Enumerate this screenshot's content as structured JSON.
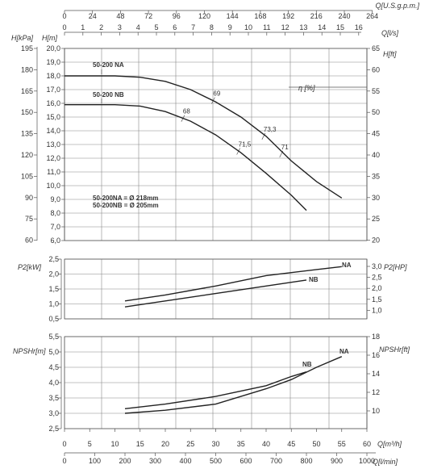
{
  "chart_data": [
    {
      "panel": "head",
      "type": "line",
      "top_axes": [
        {
          "title": "Q[U.S.g.p.m.]",
          "ticks": [
            "0",
            "24",
            "48",
            "72",
            "96",
            "120",
            "144",
            "168",
            "192",
            "216",
            "240",
            "264"
          ]
        },
        {
          "title": "Q[l/s]",
          "ticks": [
            "0",
            "1",
            "2",
            "3",
            "4",
            "5",
            "6",
            "7",
            "8",
            "9",
            "10",
            "11",
            "12",
            "13",
            "14",
            "15",
            "16"
          ]
        }
      ],
      "y_axis_m": {
        "title": "H[m]",
        "range": [
          6.0,
          20.0
        ],
        "ticks": [
          "20,0",
          "19,0",
          "18,0",
          "17,0",
          "16,0",
          "15,0",
          "14,0",
          "13,0",
          "12,0",
          "11,0",
          "10,0",
          "9,0",
          "8,0",
          "7,0",
          "6,0"
        ]
      },
      "y_axis_kpa": {
        "title": "H[kPa]",
        "ticks": [
          "195",
          "180",
          "165",
          "150",
          "135",
          "120",
          "105",
          "90",
          "75",
          "60"
        ]
      },
      "y_axis_ft": {
        "title": "H[ft]",
        "ticks": [
          "65",
          "60",
          "55",
          "50",
          "45",
          "40",
          "35",
          "30",
          "25",
          "20"
        ]
      },
      "x_range": [
        0,
        60
      ],
      "series": [
        {
          "name": "50-200 NA",
          "points": [
            [
              0,
              18.0
            ],
            [
              10,
              18.0
            ],
            [
              15,
              17.9
            ],
            [
              20,
              17.6
            ],
            [
              25,
              17.0
            ],
            [
              30,
              16.1
            ],
            [
              35,
              15.0
            ],
            [
              40,
              13.6
            ],
            [
              45,
              11.8
            ],
            [
              50,
              10.3
            ],
            [
              55,
              9.1
            ]
          ]
        },
        {
          "name": "50-200 NB",
          "points": [
            [
              0,
              15.9
            ],
            [
              10,
              15.9
            ],
            [
              15,
              15.8
            ],
            [
              20,
              15.4
            ],
            [
              25,
              14.7
            ],
            [
              30,
              13.7
            ],
            [
              35,
              12.4
            ],
            [
              40,
              10.9
            ],
            [
              45,
              9.3
            ],
            [
              48,
              8.2
            ]
          ]
        }
      ],
      "efficiency_title": "η [%]",
      "efficiency_marks": [
        {
          "label": "68",
          "x": 23.5,
          "y": 14.9
        },
        {
          "label": "69",
          "x": 29.5,
          "y": 16.2
        },
        {
          "label": "71,5",
          "x": 34.5,
          "y": 12.5
        },
        {
          "label": "73,3",
          "x": 39.5,
          "y": 13.6
        },
        {
          "label": "71",
          "x": 43.0,
          "y": 12.3
        }
      ],
      "notes": [
        "50-200NA = Ø 218mm",
        "50-200NB = Ø 205mm"
      ]
    },
    {
      "panel": "power",
      "type": "line",
      "y_axis_kw": {
        "title": "P2[kW]",
        "range": [
          0.5,
          2.5
        ],
        "ticks": [
          "2,5",
          "2,0",
          "1,5",
          "1,0",
          "0,5"
        ]
      },
      "y_axis_hp": {
        "title": "P2[HP]",
        "ticks": [
          "3,0",
          "2,5",
          "2,0",
          "1,5",
          "1,0"
        ]
      },
      "x_range": [
        0,
        60
      ],
      "series": [
        {
          "name": "NA",
          "points": [
            [
              12,
              1.1
            ],
            [
              20,
              1.3
            ],
            [
              30,
              1.6
            ],
            [
              40,
              1.95
            ],
            [
              50,
              2.15
            ],
            [
              55,
              2.25
            ]
          ]
        },
        {
          "name": "NB",
          "points": [
            [
              12,
              0.9
            ],
            [
              20,
              1.1
            ],
            [
              30,
              1.35
            ],
            [
              40,
              1.6
            ],
            [
              48,
              1.8
            ]
          ]
        }
      ]
    },
    {
      "panel": "npsh",
      "type": "line",
      "y_axis_m": {
        "title": "NPSHr[m]",
        "range": [
          2.5,
          5.5
        ],
        "ticks": [
          "5,5",
          "5,0",
          "4,5",
          "4,0",
          "3,5",
          "3,0",
          "2,5"
        ]
      },
      "y_axis_ft": {
        "title": "NPSHr[ft]",
        "ticks": [
          "18",
          "16",
          "14",
          "12",
          "10"
        ]
      },
      "x_range": [
        0,
        60
      ],
      "bottom_axes": [
        {
          "title": "Q[m³/h]",
          "ticks": [
            "0",
            "5",
            "10",
            "15",
            "20",
            "25",
            "30",
            "35",
            "40",
            "45",
            "50",
            "55",
            "60"
          ]
        },
        {
          "title": "Q[l/min]",
          "ticks": [
            "0",
            "100",
            "200",
            "300",
            "400",
            "500",
            "600",
            "700",
            "800",
            "900",
            "1000"
          ]
        }
      ],
      "series": [
        {
          "name": "NA",
          "points": [
            [
              12,
              3.0
            ],
            [
              20,
              3.1
            ],
            [
              30,
              3.3
            ],
            [
              40,
              3.8
            ],
            [
              45,
              4.1
            ],
            [
              50,
              4.5
            ],
            [
              55,
              4.85
            ]
          ]
        },
        {
          "name": "NB",
          "points": [
            [
              12,
              3.15
            ],
            [
              20,
              3.3
            ],
            [
              30,
              3.55
            ],
            [
              40,
              3.9
            ],
            [
              45,
              4.2
            ],
            [
              48,
              4.35
            ]
          ]
        }
      ]
    }
  ]
}
